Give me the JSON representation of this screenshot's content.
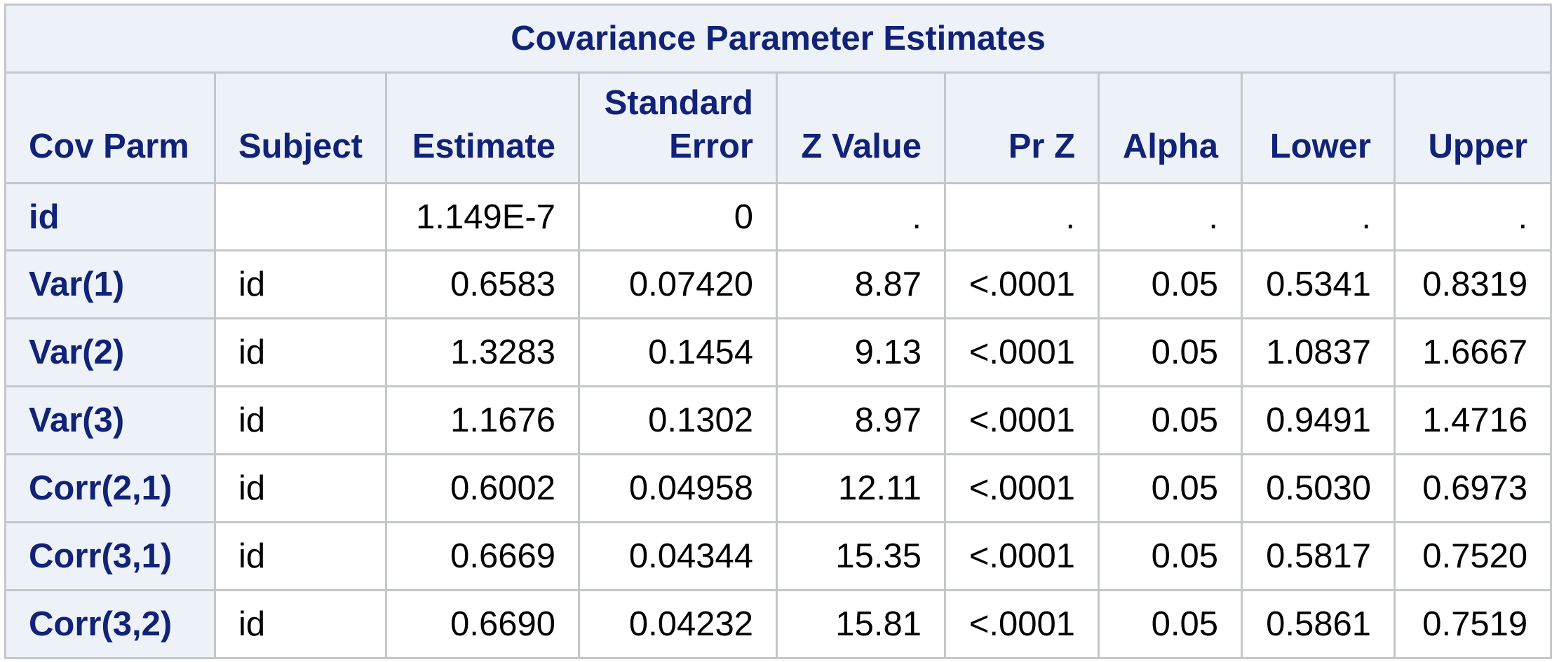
{
  "table": {
    "title": "Covariance Parameter Estimates",
    "columns": [
      {
        "label_line1": "",
        "label_line2": "Cov Parm"
      },
      {
        "label_line1": "",
        "label_line2": "Subject"
      },
      {
        "label_line1": "",
        "label_line2": "Estimate"
      },
      {
        "label_line1": "Standard",
        "label_line2": "Error"
      },
      {
        "label_line1": "",
        "label_line2": "Z Value"
      },
      {
        "label_line1": "",
        "label_line2": "Pr Z"
      },
      {
        "label_line1": "",
        "label_line2": "Alpha"
      },
      {
        "label_line1": "",
        "label_line2": "Lower"
      },
      {
        "label_line1": "",
        "label_line2": "Upper"
      }
    ],
    "rows": [
      [
        "id",
        "",
        "1.149E-7",
        "0",
        ".",
        ".",
        ".",
        ".",
        "."
      ],
      [
        "Var(1)",
        "id",
        "0.6583",
        "0.07420",
        "8.87",
        "<.0001",
        "0.05",
        "0.5341",
        "0.8319"
      ],
      [
        "Var(2)",
        "id",
        "1.3283",
        "0.1454",
        "9.13",
        "<.0001",
        "0.05",
        "1.0837",
        "1.6667"
      ],
      [
        "Var(3)",
        "id",
        "1.1676",
        "0.1302",
        "8.97",
        "<.0001",
        "0.05",
        "0.9491",
        "1.4716"
      ],
      [
        "Corr(2,1)",
        "id",
        "0.6002",
        "0.04958",
        "12.11",
        "<.0001",
        "0.05",
        "0.5030",
        "0.6973"
      ],
      [
        "Corr(3,1)",
        "id",
        "0.6669",
        "0.04344",
        "15.35",
        "<.0001",
        "0.05",
        "0.5817",
        "0.7520"
      ],
      [
        "Corr(3,2)",
        "id",
        "0.6690",
        "0.04232",
        "15.81",
        "<.0001",
        "0.05",
        "0.5861",
        "0.7519"
      ]
    ]
  }
}
